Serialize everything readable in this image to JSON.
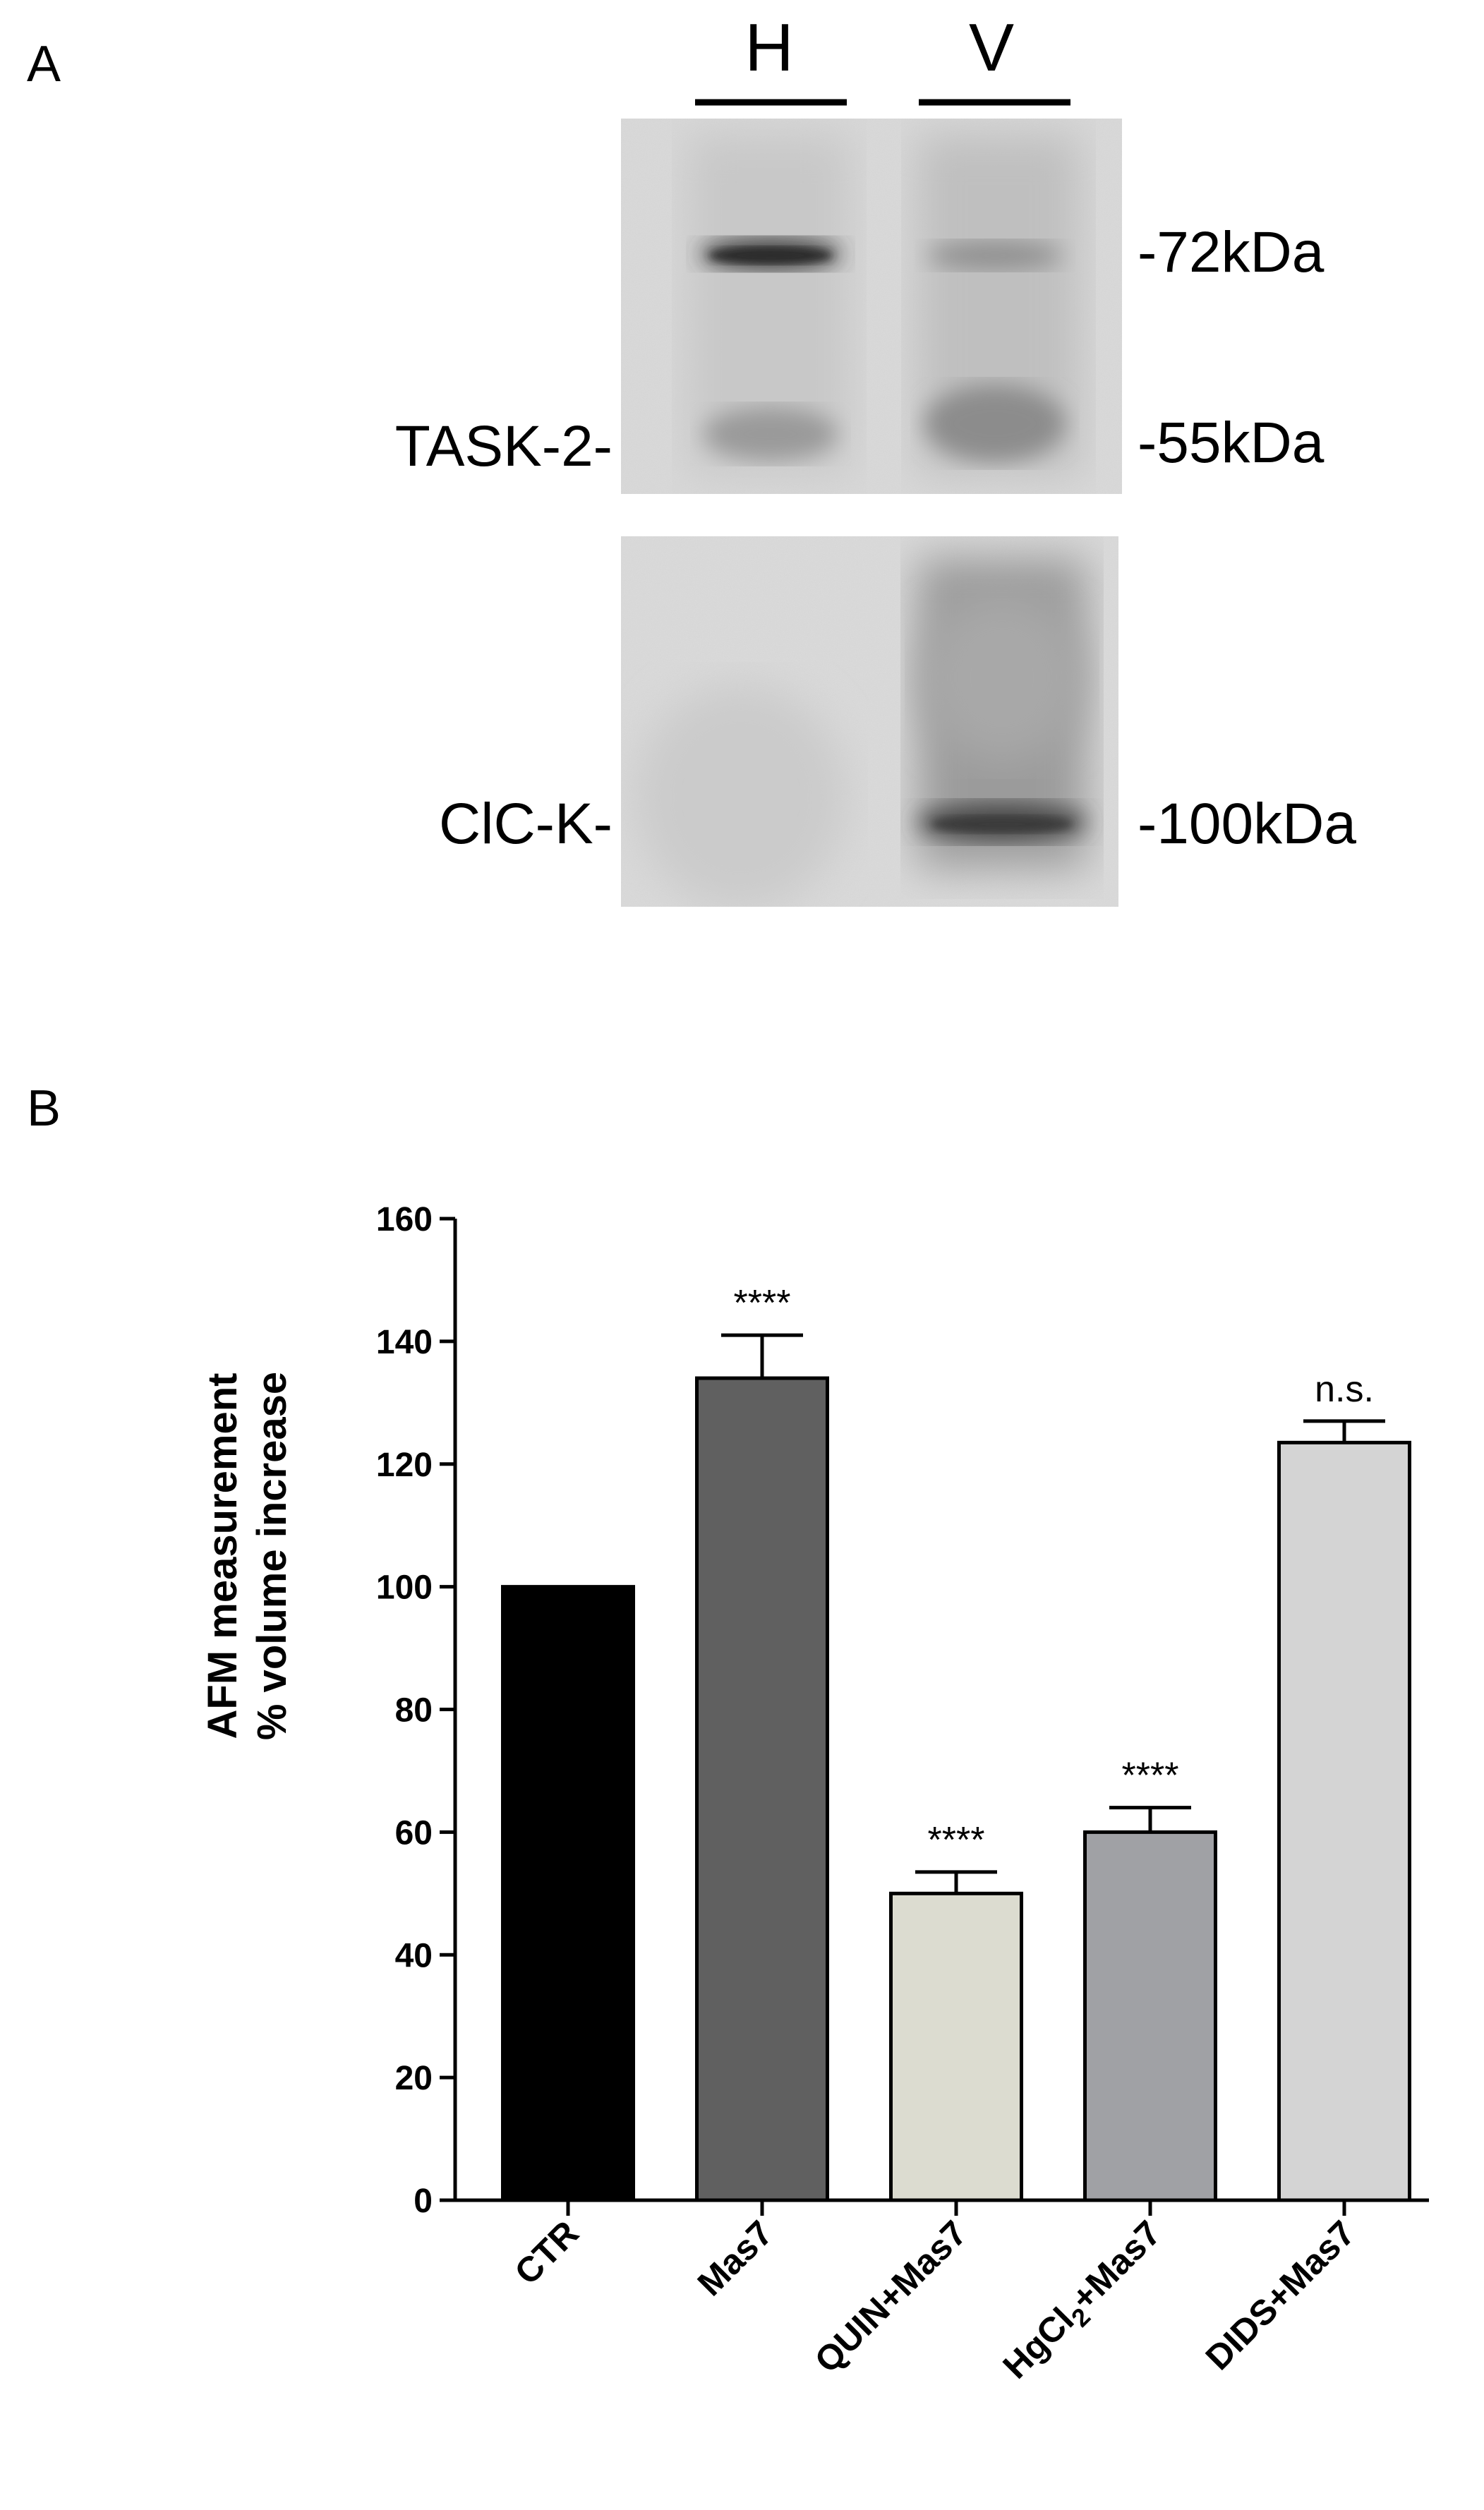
{
  "panel_a": {
    "letter": "A",
    "lanes": [
      "H",
      "V"
    ],
    "top_blot": {
      "row_label": "TASK-2-",
      "markers": [
        "-72kDa",
        "-55kDa"
      ]
    },
    "bottom_blot": {
      "row_label": "ClC-K-",
      "markers": [
        "-100kDa"
      ]
    }
  },
  "panel_b": {
    "letter": "B"
  },
  "chart_data": {
    "type": "bar",
    "categories": [
      "CTR",
      "Mas7",
      "QUIN+Mas7",
      "HgCl2+Mas7",
      "DIDS+Mas7"
    ],
    "category_display": [
      {
        "main": "CTR",
        "sub": "",
        "tail": ""
      },
      {
        "main": "Mas7",
        "sub": "",
        "tail": ""
      },
      {
        "main": "QUIN+Mas7",
        "sub": "",
        "tail": ""
      },
      {
        "main": "HgCl",
        "sub": "2",
        "tail": "+Mas7"
      },
      {
        "main": "DIDS+Mas7",
        "sub": "",
        "tail": ""
      }
    ],
    "values": [
      100,
      134,
      50,
      60,
      123.5
    ],
    "errors": [
      0,
      7,
      3.5,
      4,
      3.5
    ],
    "bar_colors": [
      "#000000",
      "#606060",
      "#dcdcd0",
      "#a0a1a5",
      "#d4d4d4"
    ],
    "significance": [
      "",
      "****",
      "****",
      "****",
      "n.s."
    ],
    "ylabel_lines": [
      "AFM measurement",
      "% volume increase"
    ],
    "xlabel": "",
    "ylim": [
      0,
      160
    ],
    "yticks": [
      0,
      20,
      40,
      60,
      80,
      100,
      120,
      140,
      160
    ],
    "grid": false
  }
}
